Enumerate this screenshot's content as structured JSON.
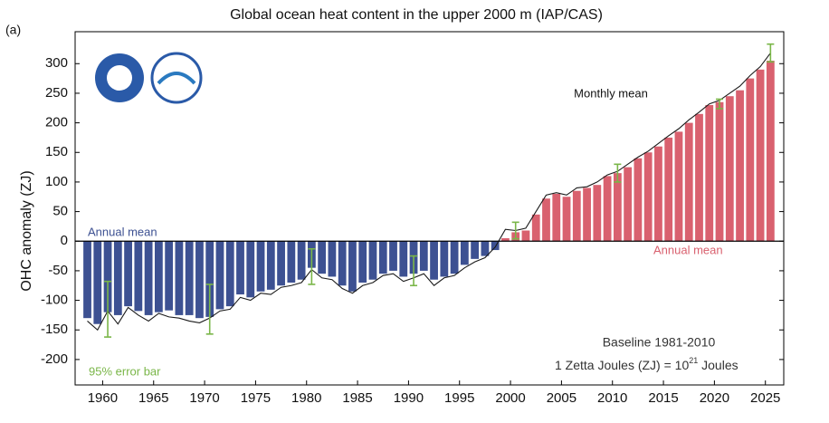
{
  "chart_data": {
    "type": "bar",
    "title": "Global ocean heat content in the upper 2000 m (IAP/CAS)",
    "panel_label": "(a)",
    "ylabel": "OHC anomaly (ZJ)",
    "xlim": [
      1957.3,
      2026.8
    ],
    "xticks": [
      1960,
      1965,
      1970,
      1975,
      1980,
      1985,
      1990,
      1995,
      2000,
      2005,
      2010,
      2015,
      2020,
      2025
    ],
    "ylim": [
      -243,
      354
    ],
    "yticks": [
      -200,
      -150,
      -100,
      -50,
      0,
      50,
      100,
      150,
      200,
      250,
      300
    ],
    "x": [
      1958,
      1959,
      1960,
      1961,
      1962,
      1963,
      1964,
      1965,
      1966,
      1967,
      1968,
      1969,
      1970,
      1971,
      1972,
      1973,
      1974,
      1975,
      1976,
      1977,
      1978,
      1979,
      1980,
      1981,
      1982,
      1983,
      1984,
      1985,
      1986,
      1987,
      1988,
      1989,
      1990,
      1991,
      1992,
      1993,
      1994,
      1995,
      1996,
      1997,
      1998,
      1999,
      2000,
      2001,
      2002,
      2003,
      2004,
      2005,
      2006,
      2007,
      2008,
      2009,
      2010,
      2011,
      2012,
      2013,
      2014,
      2015,
      2016,
      2017,
      2018,
      2019,
      2020,
      2021,
      2022,
      2023,
      2024,
      2025
    ],
    "series": [
      {
        "name": "Annual mean",
        "negative_color": "#3d5192",
        "positive_color": "#d9616f",
        "values": [
          -130,
          -140,
          -120,
          -125,
          -110,
          -118,
          -125,
          -120,
          -117,
          -125,
          -125,
          -130,
          -128,
          -115,
          -110,
          -90,
          -95,
          -85,
          -82,
          -75,
          -70,
          -65,
          -45,
          -55,
          -60,
          -75,
          -85,
          -70,
          -65,
          -55,
          -50,
          -60,
          -55,
          -50,
          -65,
          -60,
          -55,
          -40,
          -30,
          -25,
          -15,
          5,
          15,
          18,
          45,
          72,
          80,
          75,
          85,
          90,
          95,
          110,
          115,
          125,
          140,
          150,
          160,
          175,
          185,
          200,
          215,
          230,
          235,
          245,
          255,
          275,
          290,
          305
        ]
      },
      {
        "name": "Monthly mean",
        "color": "#1a1a1a",
        "values": [
          -135,
          -150,
          -118,
          -140,
          -112,
          -125,
          -135,
          -122,
          -128,
          -130,
          -135,
          -138,
          -130,
          -118,
          -115,
          -95,
          -100,
          -88,
          -90,
          -78,
          -75,
          -70,
          -48,
          -62,
          -65,
          -80,
          -88,
          -75,
          -70,
          -58,
          -55,
          -68,
          -62,
          -55,
          -75,
          -62,
          -58,
          -45,
          -35,
          -28,
          -10,
          20,
          18,
          22,
          50,
          78,
          82,
          78,
          90,
          92,
          100,
          112,
          118,
          130,
          142,
          152,
          165,
          178,
          190,
          205,
          218,
          232,
          238,
          250,
          262,
          280,
          295,
          318
        ]
      }
    ],
    "error_bars": {
      "name": "95% error bar",
      "color": "#7ab648",
      "x": [
        1960.5,
        1970.5,
        1980.5,
        1990.5,
        2000.5,
        2010.5,
        2020.5,
        2025.5
      ],
      "values": [
        -115,
        -115,
        -43,
        -50,
        18,
        115,
        232,
        318
      ],
      "errors": [
        47,
        42,
        30,
        25,
        14,
        15,
        8,
        15
      ]
    },
    "annotations": {
      "baseline": "Baseline 1981-2010",
      "unit_pre": "1 Zetta Joules (ZJ) = 10",
      "unit_sup": "21",
      "unit_post": " Joules"
    }
  }
}
